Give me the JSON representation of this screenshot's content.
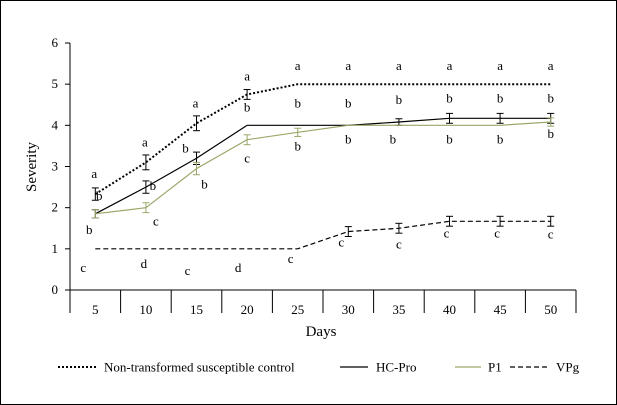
{
  "colors": {
    "frame": "#000000",
    "control": "#000000",
    "hcpro": "#000000",
    "p1": "#9aa86a",
    "vpg": "#000000"
  },
  "chart_data": {
    "type": "line",
    "title": "",
    "xlabel": "Days",
    "ylabel": "Severity",
    "x": [
      5,
      10,
      15,
      20,
      25,
      30,
      35,
      40,
      45,
      50
    ],
    "ylim": [
      0,
      6
    ],
    "yticks": [
      "0",
      "1",
      "2",
      "3",
      "4",
      "5",
      "6"
    ],
    "xticks": [
      "5",
      "10",
      "15",
      "20",
      "25",
      "30",
      "35",
      "40",
      "45",
      "50"
    ],
    "grid": false,
    "legend_position": "bottom",
    "series": [
      {
        "name": "Non-transformed susceptible control",
        "style": "dotted",
        "color": "#000000",
        "values": [
          2.33,
          3.1,
          4.05,
          4.75,
          5.0,
          5.0,
          5.0,
          5.0,
          5.0,
          5.0
        ],
        "errors": [
          0.15,
          0.18,
          0.18,
          0.12,
          0,
          0,
          0,
          0,
          0,
          0
        ],
        "letters": [
          "a",
          "a",
          "a",
          "a",
          "a",
          "a",
          "a",
          "a",
          "a",
          "a"
        ]
      },
      {
        "name": "HC-Pro",
        "style": "solid",
        "color": "#000000",
        "values": [
          1.85,
          2.5,
          3.2,
          4.0,
          4.0,
          4.0,
          4.08,
          4.17,
          4.17,
          4.17
        ],
        "errors": [
          0.1,
          0.15,
          0.15,
          0,
          0,
          0,
          0.08,
          0.12,
          0.12,
          0.12
        ],
        "letters": [
          "b",
          "b",
          "b",
          "b",
          "b",
          "b",
          "b",
          "b",
          "b",
          "b"
        ]
      },
      {
        "name": "P1",
        "style": "solid",
        "color": "#9aa86a",
        "values": [
          1.85,
          2.0,
          2.95,
          3.65,
          3.83,
          4.0,
          4.0,
          4.0,
          4.0,
          4.08
        ],
        "errors": [
          0.1,
          0.12,
          0.15,
          0.12,
          0.1,
          0,
          0,
          0,
          0,
          0.1
        ],
        "letters": [
          "b",
          "c",
          "b",
          "c",
          "b",
          "b",
          "b",
          "b",
          "b",
          "b"
        ]
      },
      {
        "name": "VPg",
        "style": "dashed",
        "color": "#000000",
        "values": [
          1.0,
          1.0,
          1.0,
          1.0,
          1.0,
          1.42,
          1.5,
          1.67,
          1.67,
          1.67
        ],
        "errors": [
          0,
          0,
          0,
          0,
          0,
          0.12,
          0.12,
          0.12,
          0.12,
          0.12
        ],
        "letters": [
          "c",
          "d",
          "c",
          "d",
          "c",
          "c",
          "c",
          "c",
          "c",
          "c"
        ]
      }
    ]
  }
}
